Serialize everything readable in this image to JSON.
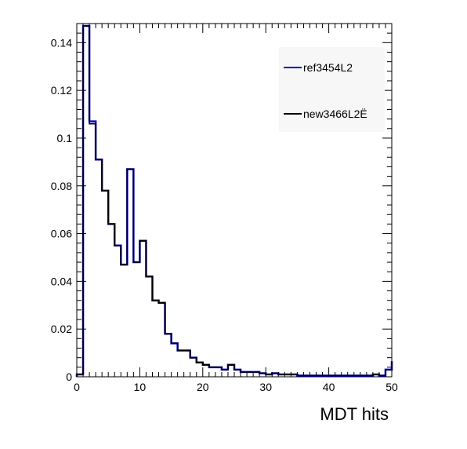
{
  "chart_data": {
    "type": "line",
    "title": "",
    "xlabel": "MDT hits",
    "ylabel": "",
    "xlim": [
      0,
      50
    ],
    "ylim": [
      0,
      0.148
    ],
    "bin_width": 1,
    "grid": false,
    "legend_placement": "top-right",
    "x_ticks": [
      "0",
      "10",
      "20",
      "30",
      "40",
      "50"
    ],
    "y_ticks": [
      "0",
      "0.02",
      "0.04",
      "0.06",
      "0.08",
      "0.1",
      "0.12",
      "0.14"
    ],
    "x_tick_values": [
      0,
      10,
      20,
      30,
      40,
      50
    ],
    "y_tick_values": [
      0,
      0.02,
      0.04,
      0.06,
      0.08,
      0.1,
      0.12,
      0.14
    ],
    "series": [
      {
        "name": "ref3454L2",
        "color": "#0000cc",
        "values": [
          0.001,
          0.147,
          0.107,
          0.091,
          0.078,
          0.064,
          0.055,
          0.047,
          0.087,
          0.048,
          0.057,
          0.042,
          0.032,
          0.031,
          0.018,
          0.014,
          0.011,
          0.011,
          0.008,
          0.006,
          0.005,
          0.004,
          0.004,
          0.003,
          0.005,
          0.003,
          0.002,
          0.002,
          0.002,
          0.0015,
          0.001,
          0.0015,
          0.001,
          0.001,
          0.001,
          0.0005,
          0.0005,
          0.0005,
          0.0005,
          0.0005,
          0.0005,
          0.0005,
          0.0005,
          0.0005,
          0.0005,
          0.0005,
          0.0005,
          0.001,
          0.0005,
          0.003,
          0.0065
        ]
      },
      {
        "name": "new3466L2Ë",
        "color": "#000000",
        "values": [
          0.001,
          0.147,
          0.106,
          0.091,
          0.078,
          0.064,
          0.055,
          0.047,
          0.087,
          0.048,
          0.057,
          0.042,
          0.032,
          0.031,
          0.018,
          0.014,
          0.011,
          0.011,
          0.008,
          0.006,
          0.005,
          0.004,
          0.004,
          0.003,
          0.005,
          0.003,
          0.002,
          0.002,
          0.002,
          0.0015,
          0.001,
          0.0015,
          0.001,
          0.001,
          0.001,
          0.0005,
          0.0005,
          0.0005,
          0.0005,
          0.0005,
          0.0005,
          0.0005,
          0.0005,
          0.0005,
          0.0005,
          0.0005,
          0.0005,
          0.001,
          0.0005,
          0.003,
          0.0065
        ]
      }
    ]
  }
}
